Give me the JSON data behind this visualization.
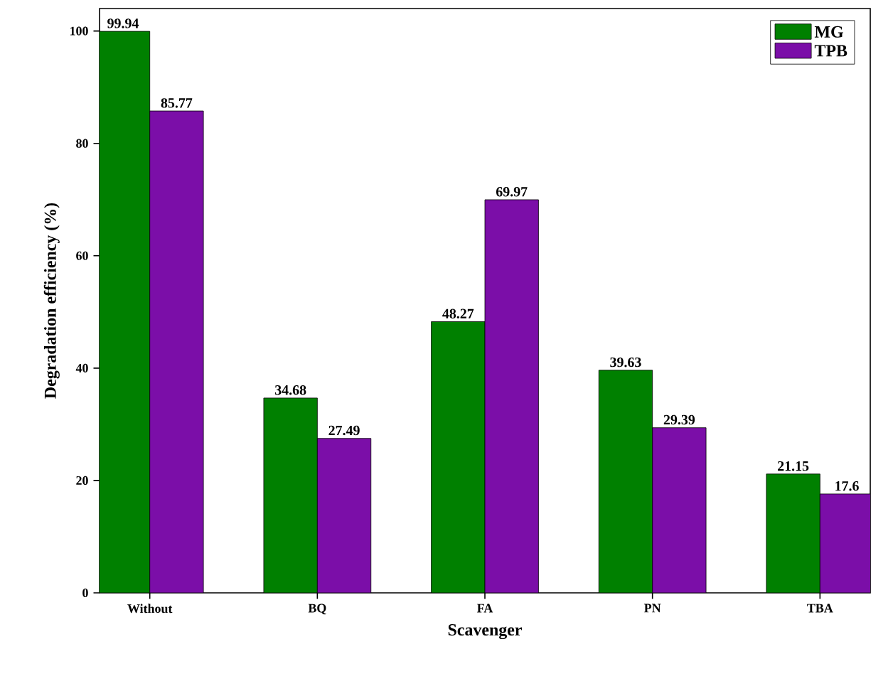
{
  "chart_data": {
    "type": "bar",
    "xlabel": "Scavenger",
    "ylabel": "Degradation efficiency (%)",
    "categories": [
      "Without",
      "BQ",
      "FA",
      "PN",
      "TBA"
    ],
    "series": [
      {
        "name": "MG",
        "color": "#008000",
        "values": [
          99.94,
          34.68,
          48.27,
          39.63,
          21.15
        ]
      },
      {
        "name": "TPB",
        "color": "#7b0ea8",
        "values": [
          85.77,
          27.49,
          69.97,
          29.39,
          17.6
        ]
      }
    ],
    "ylim": [
      0,
      104
    ],
    "yticks": [
      0,
      20,
      40,
      60,
      80,
      100
    ],
    "data_labels": true,
    "legend": "top right",
    "grid": false
  }
}
